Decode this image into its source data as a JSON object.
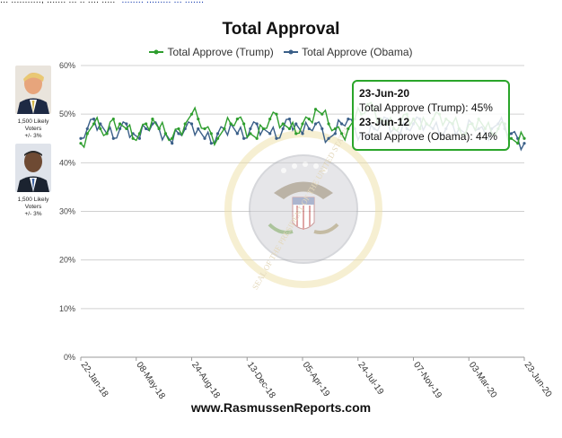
{
  "header_text": {
    "prefix": "... ..........., ....... ... .. .... .....",
    "link": "........ ......... ... ......."
  },
  "chart_data": {
    "type": "line",
    "title": "Total Approval",
    "xlabel": "",
    "ylabel": "",
    "ylim": [
      0,
      60
    ],
    "yticks": [
      "0%",
      "10%",
      "20%",
      "30%",
      "40%",
      "50%",
      "60%"
    ],
    "xticks": [
      "22-Jan-18",
      "08-May-18",
      "24-Aug-18",
      "13-Dec-18",
      "05-Apr-19",
      "24-Jul-19",
      "07-Nov-19",
      "03-Mar-20",
      "23-Jun-20"
    ],
    "grid": true,
    "legend_position": "top",
    "series": [
      {
        "name": "Total Approve (Trump)",
        "color": "#2e9e2e",
        "values": [
          44,
          46,
          48,
          47,
          46,
          49,
          48,
          47,
          45,
          46,
          48,
          49,
          47,
          46,
          45,
          47,
          48,
          50,
          49,
          47,
          46,
          45,
          47,
          48,
          49,
          48,
          46,
          45,
          47,
          49,
          50,
          48,
          47,
          46,
          48,
          49,
          51,
          50,
          48,
          47,
          46,
          47,
          49,
          50,
          52,
          51,
          49,
          48,
          47,
          48,
          50,
          49,
          47,
          48,
          49,
          50,
          49,
          48,
          47,
          46,
          48,
          49,
          47,
          46,
          47,
          48,
          45,
          44,
          45
        ]
      },
      {
        "name": "Total Approve (Obama)",
        "color": "#3a5f88",
        "values": [
          45,
          47,
          49,
          48,
          46,
          45,
          47,
          48,
          46,
          45,
          47,
          48,
          47,
          46,
          44,
          46,
          47,
          48,
          47,
          45,
          44,
          46,
          47,
          48,
          46,
          45,
          47,
          48,
          47,
          46,
          45,
          47,
          49,
          48,
          46,
          47,
          48,
          47,
          45,
          46,
          48,
          49,
          47,
          46,
          45,
          47,
          48,
          49,
          47,
          46,
          47,
          48,
          49,
          48,
          47,
          46,
          47,
          48,
          47,
          46,
          48,
          47,
          46,
          47,
          48,
          47,
          46,
          45,
          44
        ]
      }
    ]
  },
  "side_labels": {
    "trump": [
      "1,500 Likely",
      "Voters",
      "+/- 3%"
    ],
    "obama": [
      "1,500 Likely",
      "Voters",
      "+/- 3%"
    ]
  },
  "tooltip": {
    "date1": "23-Jun-20",
    "line1": "Total Approve (Trump): 45%",
    "date2": "23-Jun-12",
    "line2": "Total Approve (Obama): 44%"
  },
  "watermark_text": "SEAL OF THE PRESIDENT OF THE UNITED STATES",
  "footer": "www.RasmussenReports.com"
}
